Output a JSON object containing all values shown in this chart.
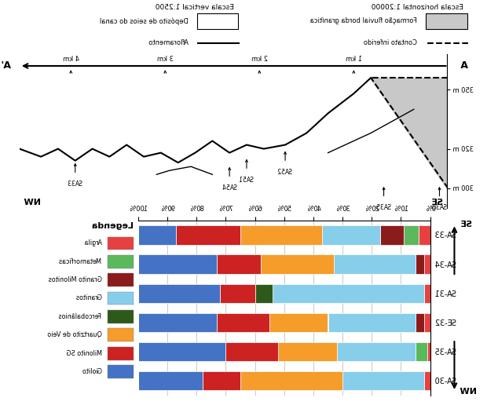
{
  "bar_categories": [
    "SA-30",
    "SA-35",
    "SE-32",
    "SA-31",
    "SA-34",
    "SA-33"
  ],
  "legend_labels": [
    "Argila",
    "Metamorficas",
    "Granito Milonitos",
    "Granitos",
    "Fercobalânios",
    "Quartzito de Veio",
    "Milonito SG",
    "Giolito"
  ],
  "legend_colors": [
    "#e84040",
    "#5cb85c",
    "#8b1c1c",
    "#87CEEB",
    "#2d5a1b",
    "#f59c2a",
    "#cc2222",
    "#4472c4"
  ],
  "bar_data": {
    "SA-30": [
      2,
      0,
      0,
      28,
      0,
      35,
      13,
      22
    ],
    "SA-35": [
      1,
      4,
      0,
      27,
      0,
      20,
      18,
      30
    ],
    "SE-32": [
      2,
      0,
      3,
      30,
      0,
      20,
      18,
      27
    ],
    "SA-31": [
      2,
      0,
      0,
      52,
      6,
      0,
      12,
      28
    ],
    "SA-34": [
      2,
      0,
      3,
      28,
      0,
      25,
      15,
      27
    ],
    "SA-33": [
      4,
      5,
      8,
      20,
      0,
      28,
      22,
      13
    ]
  },
  "scale_horizontal": "Escala horizontal 1:20000",
  "scale_vertical": "Escala vertical 1:2500",
  "legend_title": "Legenda",
  "km_labels": [
    "1 km",
    "2 km",
    "3 km",
    "4 km"
  ],
  "elevation_labels": [
    "350 m",
    "320 m",
    "300 m"
  ],
  "section_legend": {
    "gray_box": "Formação fluvial borda granítica",
    "empty_box": "Depósito de seios do canal",
    "dashed_line": "Contato inferido",
    "solid_line": "Afloramento"
  },
  "figsize": [
    6.2,
    5.3
  ],
  "dpi": 100
}
